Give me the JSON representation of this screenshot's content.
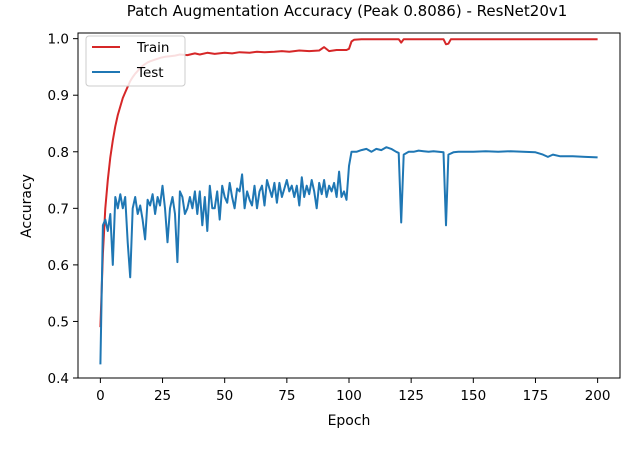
{
  "chart_data": {
    "type": "line",
    "title": "Patch Augmentation Accuracy (Peak 0.8086) - ResNet20v1",
    "xlabel": "Epoch",
    "ylabel": "Accuracy",
    "xlim": [
      -9,
      209
    ],
    "ylim": [
      0.4,
      1.01
    ],
    "xticks": [
      0,
      25,
      50,
      75,
      100,
      125,
      150,
      175,
      200
    ],
    "yticks": [
      0.4,
      0.5,
      0.6,
      0.7,
      0.8,
      0.9,
      1.0
    ],
    "grid": false,
    "legend_position": "top-left",
    "series": [
      {
        "name": "Train",
        "color": "#d62728",
        "points": [
          [
            0,
            0.49
          ],
          [
            1,
            0.62
          ],
          [
            2,
            0.7
          ],
          [
            3,
            0.75
          ],
          [
            4,
            0.79
          ],
          [
            5,
            0.82
          ],
          [
            6,
            0.845
          ],
          [
            7,
            0.865
          ],
          [
            8,
            0.88
          ],
          [
            9,
            0.895
          ],
          [
            10,
            0.905
          ],
          [
            11,
            0.915
          ],
          [
            12,
            0.925
          ],
          [
            13,
            0.932
          ],
          [
            14,
            0.938
          ],
          [
            15,
            0.943
          ],
          [
            16,
            0.948
          ],
          [
            17,
            0.952
          ],
          [
            18,
            0.955
          ],
          [
            19,
            0.958
          ],
          [
            20,
            0.96
          ],
          [
            22,
            0.963
          ],
          [
            24,
            0.966
          ],
          [
            26,
            0.968
          ],
          [
            28,
            0.969
          ],
          [
            30,
            0.97
          ],
          [
            32,
            0.972
          ],
          [
            35,
            0.971
          ],
          [
            38,
            0.974
          ],
          [
            40,
            0.972
          ],
          [
            43,
            0.975
          ],
          [
            46,
            0.973
          ],
          [
            50,
            0.975
          ],
          [
            53,
            0.974
          ],
          [
            56,
            0.976
          ],
          [
            60,
            0.975
          ],
          [
            63,
            0.977
          ],
          [
            66,
            0.976
          ],
          [
            70,
            0.977
          ],
          [
            73,
            0.978
          ],
          [
            76,
            0.977
          ],
          [
            80,
            0.979
          ],
          [
            84,
            0.978
          ],
          [
            88,
            0.979
          ],
          [
            90,
            0.985
          ],
          [
            92,
            0.978
          ],
          [
            95,
            0.98
          ],
          [
            99,
            0.98
          ],
          [
            100,
            0.982
          ],
          [
            101,
            0.995
          ],
          [
            102,
            0.998
          ],
          [
            105,
            0.999
          ],
          [
            110,
            0.999
          ],
          [
            115,
            0.999
          ],
          [
            120,
            0.999
          ],
          [
            121,
            0.993
          ],
          [
            122,
            0.999
          ],
          [
            125,
            0.999
          ],
          [
            130,
            0.999
          ],
          [
            135,
            0.999
          ],
          [
            138,
            0.999
          ],
          [
            139,
            0.99
          ],
          [
            140,
            0.991
          ],
          [
            141,
            0.999
          ],
          [
            145,
            0.999
          ],
          [
            150,
            0.999
          ],
          [
            160,
            0.999
          ],
          [
            170,
            0.999
          ],
          [
            180,
            0.999
          ],
          [
            190,
            0.999
          ],
          [
            200,
            0.999
          ]
        ]
      },
      {
        "name": "Test",
        "color": "#1f77b4",
        "points": [
          [
            0,
            0.424
          ],
          [
            1,
            0.67
          ],
          [
            2,
            0.68
          ],
          [
            3,
            0.66
          ],
          [
            4,
            0.69
          ],
          [
            5,
            0.6
          ],
          [
            6,
            0.72
          ],
          [
            7,
            0.7
          ],
          [
            8,
            0.725
          ],
          [
            9,
            0.7
          ],
          [
            10,
            0.72
          ],
          [
            11,
            0.64
          ],
          [
            12,
            0.578
          ],
          [
            13,
            0.7
          ],
          [
            14,
            0.72
          ],
          [
            15,
            0.69
          ],
          [
            16,
            0.705
          ],
          [
            17,
            0.68
          ],
          [
            18,
            0.645
          ],
          [
            19,
            0.715
          ],
          [
            20,
            0.705
          ],
          [
            21,
            0.725
          ],
          [
            22,
            0.69
          ],
          [
            23,
            0.72
          ],
          [
            24,
            0.705
          ],
          [
            25,
            0.74
          ],
          [
            26,
            0.7
          ],
          [
            27,
            0.64
          ],
          [
            28,
            0.7
          ],
          [
            29,
            0.72
          ],
          [
            30,
            0.69
          ],
          [
            31,
            0.605
          ],
          [
            32,
            0.73
          ],
          [
            33,
            0.72
          ],
          [
            34,
            0.69
          ],
          [
            35,
            0.7
          ],
          [
            36,
            0.72
          ],
          [
            37,
            0.7
          ],
          [
            38,
            0.73
          ],
          [
            39,
            0.69
          ],
          [
            40,
            0.73
          ],
          [
            41,
            0.67
          ],
          [
            42,
            0.72
          ],
          [
            43,
            0.66
          ],
          [
            44,
            0.74
          ],
          [
            45,
            0.7
          ],
          [
            46,
            0.7
          ],
          [
            47,
            0.73
          ],
          [
            48,
            0.68
          ],
          [
            49,
            0.74
          ],
          [
            50,
            0.72
          ],
          [
            51,
            0.71
          ],
          [
            52,
            0.745
          ],
          [
            53,
            0.72
          ],
          [
            54,
            0.7
          ],
          [
            55,
            0.735
          ],
          [
            56,
            0.73
          ],
          [
            57,
            0.76
          ],
          [
            58,
            0.7
          ],
          [
            59,
            0.73
          ],
          [
            60,
            0.715
          ],
          [
            61,
            0.705
          ],
          [
            62,
            0.74
          ],
          [
            63,
            0.7
          ],
          [
            64,
            0.73
          ],
          [
            65,
            0.74
          ],
          [
            66,
            0.705
          ],
          [
            67,
            0.75
          ],
          [
            68,
            0.735
          ],
          [
            69,
            0.72
          ],
          [
            70,
            0.745
          ],
          [
            71,
            0.71
          ],
          [
            72,
            0.745
          ],
          [
            73,
            0.72
          ],
          [
            74,
            0.735
          ],
          [
            75,
            0.75
          ],
          [
            76,
            0.73
          ],
          [
            77,
            0.74
          ],
          [
            78,
            0.72
          ],
          [
            79,
            0.74
          ],
          [
            80,
            0.705
          ],
          [
            81,
            0.755
          ],
          [
            82,
            0.72
          ],
          [
            83,
            0.74
          ],
          [
            84,
            0.725
          ],
          [
            85,
            0.75
          ],
          [
            86,
            0.73
          ],
          [
            87,
            0.7
          ],
          [
            88,
            0.745
          ],
          [
            89,
            0.725
          ],
          [
            90,
            0.75
          ],
          [
            91,
            0.72
          ],
          [
            92,
            0.74
          ],
          [
            93,
            0.73
          ],
          [
            94,
            0.745
          ],
          [
            95,
            0.72
          ],
          [
            96,
            0.765
          ],
          [
            97,
            0.72
          ],
          [
            98,
            0.73
          ],
          [
            99,
            0.715
          ],
          [
            100,
            0.775
          ],
          [
            101,
            0.8
          ],
          [
            103,
            0.8
          ],
          [
            105,
            0.803
          ],
          [
            107,
            0.805
          ],
          [
            109,
            0.8
          ],
          [
            111,
            0.805
          ],
          [
            113,
            0.803
          ],
          [
            115,
            0.808
          ],
          [
            117,
            0.805
          ],
          [
            119,
            0.8
          ],
          [
            120,
            0.798
          ],
          [
            121,
            0.675
          ],
          [
            122,
            0.795
          ],
          [
            124,
            0.8
          ],
          [
            126,
            0.8
          ],
          [
            128,
            0.802
          ],
          [
            130,
            0.801
          ],
          [
            132,
            0.8
          ],
          [
            134,
            0.801
          ],
          [
            136,
            0.8
          ],
          [
            138,
            0.799
          ],
          [
            139,
            0.67
          ],
          [
            140,
            0.795
          ],
          [
            142,
            0.799
          ],
          [
            144,
            0.8
          ],
          [
            146,
            0.8
          ],
          [
            150,
            0.8
          ],
          [
            155,
            0.801
          ],
          [
            160,
            0.8
          ],
          [
            165,
            0.801
          ],
          [
            170,
            0.8
          ],
          [
            175,
            0.799
          ],
          [
            178,
            0.795
          ],
          [
            180,
            0.791
          ],
          [
            182,
            0.795
          ],
          [
            185,
            0.792
          ],
          [
            190,
            0.792
          ],
          [
            195,
            0.791
          ],
          [
            200,
            0.79
          ]
        ]
      }
    ]
  }
}
